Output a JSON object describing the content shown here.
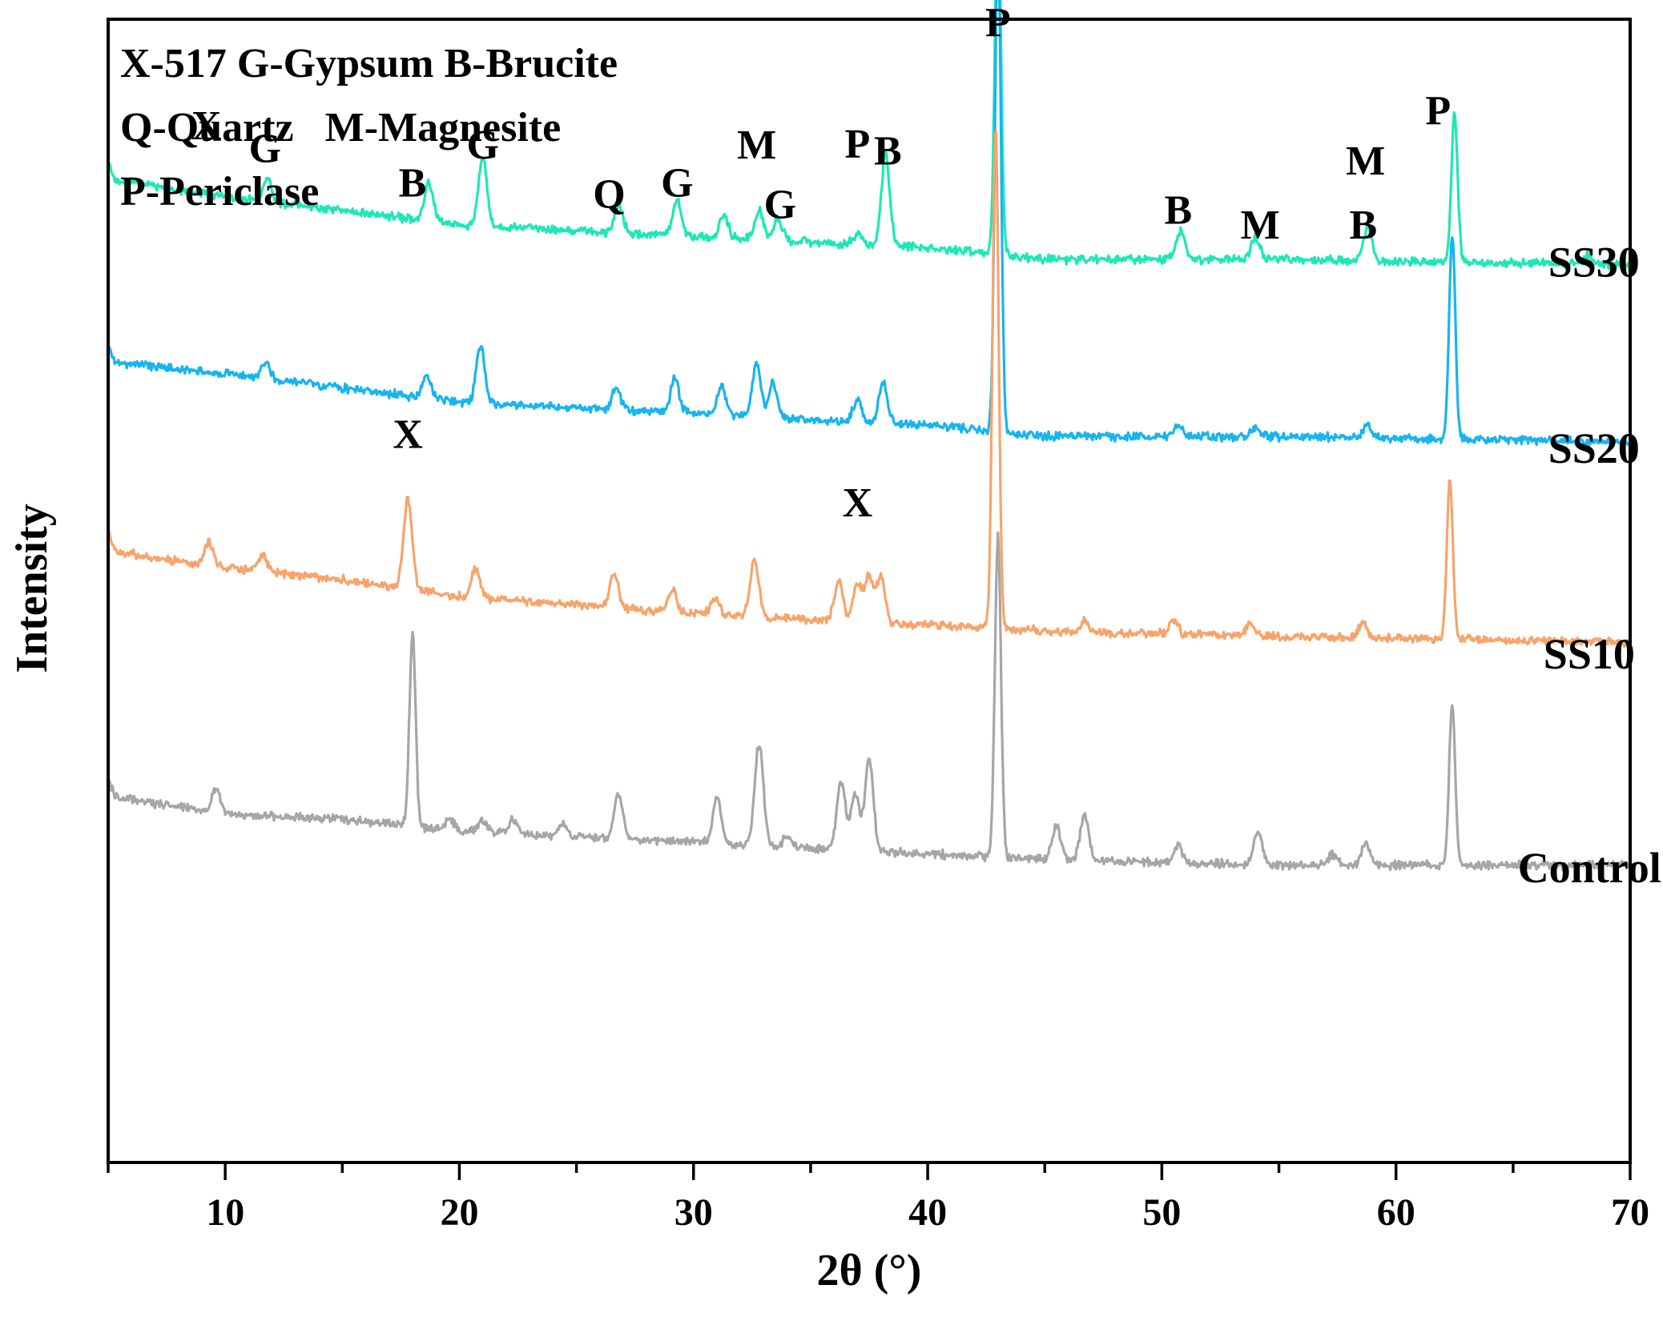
{
  "chart_data": {
    "type": "line",
    "title": "",
    "xlabel": "2θ (°)",
    "ylabel": "Intensity",
    "xlim": [
      5,
      70
    ],
    "x_ticks": [
      10,
      20,
      30,
      40,
      50,
      60,
      70
    ],
    "y_ticks": "none",
    "grid": false,
    "legend_text": [
      "X-517 G-Gypsum B-Brucite",
      "Q-Quartz   M-Magnesite",
      "P-Periclase"
    ],
    "series": [
      {
        "name": "SS30",
        "color": "#1de8b5",
        "baseline": [
          [
            5,
            0.86
          ],
          [
            10,
            0.845
          ],
          [
            20,
            0.82
          ],
          [
            30,
            0.81
          ],
          [
            40,
            0.8
          ],
          [
            45,
            0.79
          ],
          [
            55,
            0.79
          ],
          [
            70,
            0.785
          ]
        ],
        "peaks": [
          [
            11.8,
            0.02
          ],
          [
            18.7,
            0.035
          ],
          [
            21.0,
            0.06
          ],
          [
            26.8,
            0.025
          ],
          [
            29.3,
            0.03
          ],
          [
            31.3,
            0.02
          ],
          [
            32.8,
            0.025
          ],
          [
            33.6,
            0.02
          ],
          [
            37.0,
            0.01
          ],
          [
            38.2,
            0.08
          ],
          [
            43.0,
            0.31
          ],
          [
            50.8,
            0.025
          ],
          [
            54.0,
            0.02
          ],
          [
            58.8,
            0.03
          ],
          [
            62.5,
            0.13
          ],
          [
            68.2,
            0.008
          ]
        ]
      },
      {
        "name": "SS20",
        "color": "#18b4f0",
        "baseline": [
          [
            5,
            0.7
          ],
          [
            10,
            0.69
          ],
          [
            20,
            0.665
          ],
          [
            30,
            0.655
          ],
          [
            40,
            0.645
          ],
          [
            45,
            0.635
          ],
          [
            55,
            0.635
          ],
          [
            70,
            0.63
          ]
        ],
        "peaks": [
          [
            11.7,
            0.015
          ],
          [
            18.6,
            0.02
          ],
          [
            20.9,
            0.05
          ],
          [
            26.7,
            0.02
          ],
          [
            29.2,
            0.03
          ],
          [
            31.2,
            0.025
          ],
          [
            32.7,
            0.045
          ],
          [
            33.4,
            0.03
          ],
          [
            37.0,
            0.02
          ],
          [
            38.1,
            0.035
          ],
          [
            43.0,
            0.43
          ],
          [
            50.7,
            0.01
          ],
          [
            54.0,
            0.008
          ],
          [
            58.8,
            0.012
          ],
          [
            62.4,
            0.18
          ]
        ]
      },
      {
        "name": "SS10",
        "color": "#f7a46b",
        "baseline": [
          [
            5,
            0.535
          ],
          [
            10,
            0.52
          ],
          [
            15,
            0.51
          ],
          [
            20,
            0.495
          ],
          [
            30,
            0.48
          ],
          [
            40,
            0.47
          ],
          [
            45,
            0.465
          ],
          [
            55,
            0.46
          ],
          [
            70,
            0.455
          ]
        ],
        "peaks": [
          [
            9.3,
            0.02
          ],
          [
            11.6,
            0.015
          ],
          [
            17.8,
            0.08
          ],
          [
            20.7,
            0.025
          ],
          [
            26.6,
            0.03
          ],
          [
            29.1,
            0.02
          ],
          [
            30.9,
            0.015
          ],
          [
            32.6,
            0.05
          ],
          [
            36.2,
            0.035
          ],
          [
            37.0,
            0.035
          ],
          [
            37.5,
            0.04
          ],
          [
            38.0,
            0.04
          ],
          [
            42.9,
            0.44
          ],
          [
            46.7,
            0.01
          ],
          [
            50.5,
            0.012
          ],
          [
            53.8,
            0.01
          ],
          [
            58.6,
            0.015
          ],
          [
            62.3,
            0.14
          ]
        ]
      },
      {
        "name": "Control",
        "color": "#a6a6a6",
        "baseline": [
          [
            5,
            0.32
          ],
          [
            10,
            0.305
          ],
          [
            15,
            0.3
          ],
          [
            20,
            0.29
          ],
          [
            30,
            0.28
          ],
          [
            40,
            0.27
          ],
          [
            45,
            0.265
          ],
          [
            55,
            0.26
          ],
          [
            70,
            0.26
          ]
        ],
        "peaks": [
          [
            9.6,
            0.02
          ],
          [
            18.0,
            0.17
          ],
          [
            19.6,
            0.01
          ],
          [
            21.0,
            0.01
          ],
          [
            22.3,
            0.012
          ],
          [
            24.4,
            0.01
          ],
          [
            26.8,
            0.04
          ],
          [
            31.0,
            0.04
          ],
          [
            32.8,
            0.09
          ],
          [
            34.0,
            0.01
          ],
          [
            36.3,
            0.06
          ],
          [
            36.9,
            0.05
          ],
          [
            37.5,
            0.08
          ],
          [
            43.0,
            0.28
          ],
          [
            45.5,
            0.03
          ],
          [
            46.7,
            0.04
          ],
          [
            50.7,
            0.015
          ],
          [
            54.1,
            0.03
          ],
          [
            57.3,
            0.01
          ],
          [
            58.7,
            0.02
          ],
          [
            62.4,
            0.14
          ]
        ]
      }
    ],
    "peak_labels": [
      {
        "text": "X",
        "x": 9.2,
        "y": 0.895
      },
      {
        "text": "G",
        "x": 11.7,
        "y": 0.875
      },
      {
        "text": "B",
        "x": 18.0,
        "y": 0.845
      },
      {
        "text": "G",
        "x": 21.0,
        "y": 0.878
      },
      {
        "text": "Q",
        "x": 26.4,
        "y": 0.835
      },
      {
        "text": "G",
        "x": 29.3,
        "y": 0.845
      },
      {
        "text": "M",
        "x": 32.7,
        "y": 0.878
      },
      {
        "text": "G",
        "x": 33.7,
        "y": 0.826
      },
      {
        "text": "P",
        "x": 37.0,
        "y": 0.879
      },
      {
        "text": "B",
        "x": 38.3,
        "y": 0.873
      },
      {
        "text": "P",
        "x": 43.0,
        "y": 0.985
      },
      {
        "text": "B",
        "x": 50.7,
        "y": 0.821
      },
      {
        "text": "M",
        "x": 54.2,
        "y": 0.808
      },
      {
        "text": "M",
        "x": 58.7,
        "y": 0.864
      },
      {
        "text": "B",
        "x": 58.6,
        "y": 0.808
      },
      {
        "text": "P",
        "x": 61.8,
        "y": 0.908
      },
      {
        "text": "X",
        "x": 17.8,
        "y": 0.625
      },
      {
        "text": "X",
        "x": 37.0,
        "y": 0.565
      }
    ],
    "curve_labels": [
      {
        "text": "SS30",
        "x": 66.5,
        "y": 0.775
      },
      {
        "text": "SS20",
        "x": 66.5,
        "y": 0.612
      },
      {
        "text": "SS10",
        "x": 66.3,
        "y": 0.432
      },
      {
        "text": "Control",
        "x": 65.2,
        "y": 0.245
      }
    ]
  }
}
